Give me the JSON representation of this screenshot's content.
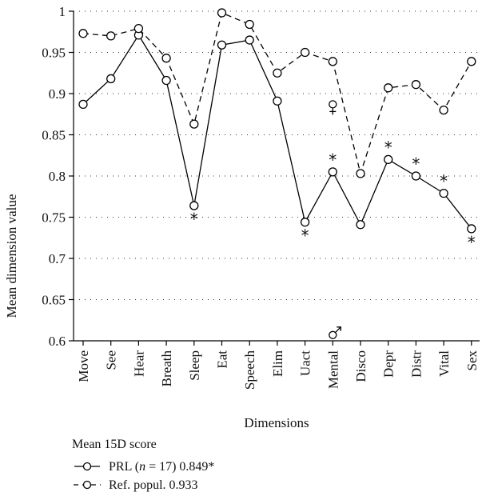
{
  "chart_data": {
    "type": "line",
    "xlabel": "Dimensions",
    "ylabel": "Mean dimension value",
    "ylim": [
      0.6,
      1.0
    ],
    "yticks": [
      0.6,
      0.65,
      0.7,
      0.75,
      0.8,
      0.85,
      0.9,
      0.95,
      1.0
    ],
    "ytick_labels": [
      "0.6",
      "0.65",
      "0.7",
      "0.75",
      "0.8",
      "0.85",
      "0.9",
      "0.95",
      "1"
    ],
    "grid": true,
    "categories": [
      "Move",
      "See",
      "Hear",
      "Breath",
      "Sleep",
      "Eat",
      "Speech",
      "Elim",
      "Uact",
      "Mental",
      "Disco",
      "Depr",
      "Distr",
      "Vital",
      "Sex"
    ],
    "series": [
      {
        "name": "PRL (n = 17) 0.849*",
        "style": "solid",
        "values": [
          0.887,
          0.918,
          0.971,
          0.916,
          0.764,
          0.959,
          0.965,
          0.891,
          0.744,
          0.805,
          0.741,
          0.82,
          0.8,
          0.779,
          0.736
        ]
      },
      {
        "name": "Ref. popul. 0.933",
        "style": "dashed",
        "values": [
          0.973,
          0.97,
          0.979,
          0.943,
          0.863,
          0.998,
          0.984,
          0.925,
          0.95,
          0.939,
          0.803,
          0.907,
          0.911,
          0.88,
          0.939
        ]
      }
    ],
    "annotations": [
      {
        "category": "Sleep",
        "text": "*",
        "position": "below"
      },
      {
        "category": "Uact",
        "text": "*",
        "position": "below"
      },
      {
        "category": "Mental",
        "text": "*",
        "position": "above"
      },
      {
        "category": "Depr",
        "text": "*",
        "position": "above"
      },
      {
        "category": "Distr",
        "text": "*",
        "position": "above"
      },
      {
        "category": "Vital",
        "text": "*",
        "position": "above"
      },
      {
        "category": "Sex",
        "text": "*",
        "position": "below"
      }
    ],
    "symbol_markers": [
      {
        "category": "Mental",
        "value": 0.887,
        "symbol": "female"
      },
      {
        "category": "Mental",
        "value": 0.607,
        "symbol": "male"
      }
    ],
    "legend": {
      "title": "Mean 15D score",
      "position": "bottom-left",
      "entries": [
        {
          "prefix": "PRL (",
          "n_var": "n",
          "mid": " = 17) 0.849*",
          "style": "solid"
        },
        {
          "prefix": "Ref. popul. 0.933",
          "n_var": "",
          "mid": "",
          "style": "dashed"
        }
      ]
    }
  }
}
